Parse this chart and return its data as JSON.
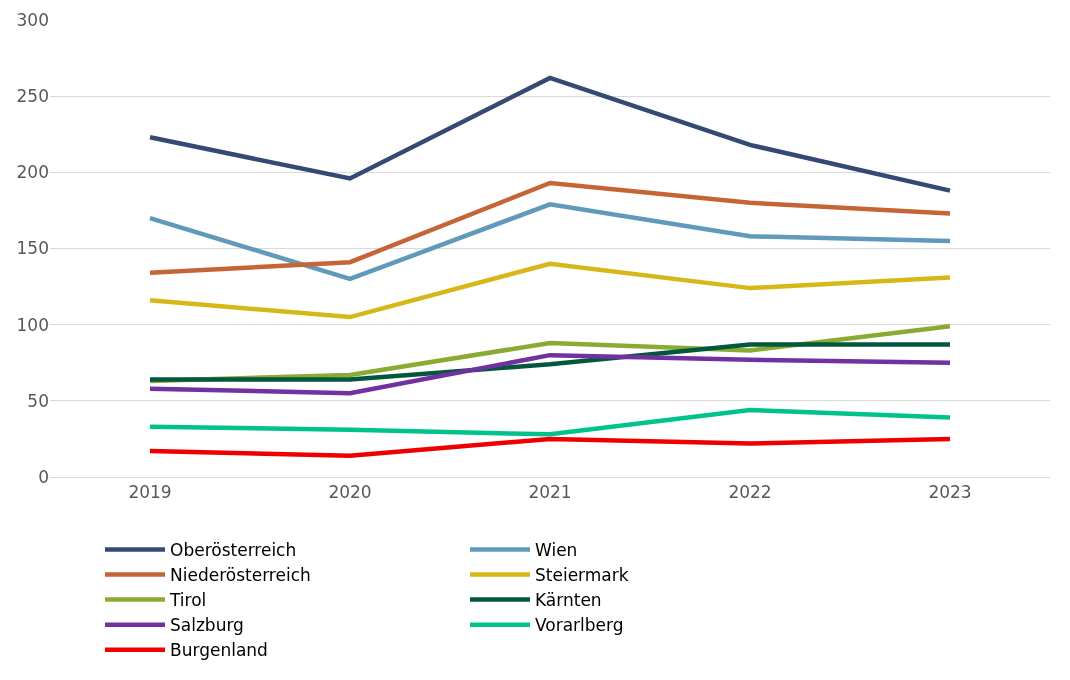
{
  "chart_data": {
    "type": "line",
    "categories": [
      "2019",
      "2020",
      "2021",
      "2022",
      "2023"
    ],
    "ylim": [
      0,
      300
    ],
    "yticks": [
      0,
      50,
      100,
      150,
      200,
      250,
      300
    ],
    "grid": "y",
    "legend": "bottom",
    "marker": "none",
    "line_style": "solid",
    "series": [
      {
        "name": "Oberösterreich",
        "color": "#344a72",
        "values": [
          223,
          196,
          262,
          218,
          188
        ]
      },
      {
        "name": "Wien",
        "color": "#6199bb",
        "values": [
          170,
          130,
          179,
          158,
          155
        ]
      },
      {
        "name": "Niederösterreich",
        "color": "#c56535",
        "values": [
          134,
          141,
          193,
          180,
          173
        ]
      },
      {
        "name": "Steiermark",
        "color": "#d7b717",
        "values": [
          116,
          105,
          140,
          124,
          131
        ]
      },
      {
        "name": "Tirol",
        "color": "#8aaa32",
        "values": [
          63,
          67,
          88,
          83,
          99
        ]
      },
      {
        "name": "Kärnten",
        "color": "#03573d",
        "values": [
          64,
          64,
          74,
          87,
          87
        ]
      },
      {
        "name": "Salzburg",
        "color": "#7131a0",
        "values": [
          58,
          55,
          80,
          77,
          75
        ]
      },
      {
        "name": "Vorarlberg",
        "color": "#00c38c",
        "values": [
          33,
          31,
          28,
          44,
          39
        ]
      },
      {
        "name": "Burgenland",
        "color": "#ee0000",
        "values": [
          17,
          14,
          25,
          22,
          25
        ]
      }
    ]
  }
}
